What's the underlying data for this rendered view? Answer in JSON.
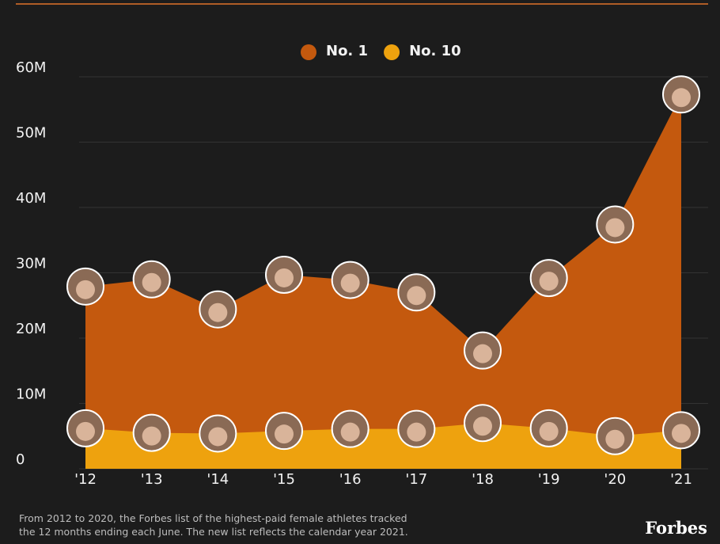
{
  "chart_data": {
    "type": "area",
    "categories": [
      "'12",
      "'13",
      "'14",
      "'15",
      "'16",
      "'17",
      "'18",
      "'19",
      "'20",
      "'21"
    ],
    "series": [
      {
        "name": "No. 1",
        "color": "#c4590e",
        "values": [
          27.9,
          29,
          24.4,
          29.7,
          28.9,
          27,
          18.1,
          29.2,
          37.4,
          57.3
        ]
      },
      {
        "name": "No. 10",
        "color": "#eea20e",
        "values": [
          6.2,
          5.5,
          5.4,
          5.8,
          6.1,
          6.1,
          7,
          6.2,
          5,
          5.9
        ]
      }
    ],
    "ylim": [
      0,
      60
    ],
    "yticks": [
      {
        "value": 0,
        "label": "0"
      },
      {
        "value": 10,
        "label": "10M"
      },
      {
        "value": 20,
        "label": "20M"
      },
      {
        "value": 30,
        "label": "30M"
      },
      {
        "value": 40,
        "label": "40M"
      },
      {
        "value": 50,
        "label": "50M"
      },
      {
        "value": 60,
        "label": "60M"
      }
    ],
    "grid": true,
    "legend": "top",
    "note": "From 2012 to 2020, the Forbes list of the highest-paid female athletes tracked the 12 months ending each June. The new list reflects the calendar year 2021.",
    "source": "Forbes"
  }
}
